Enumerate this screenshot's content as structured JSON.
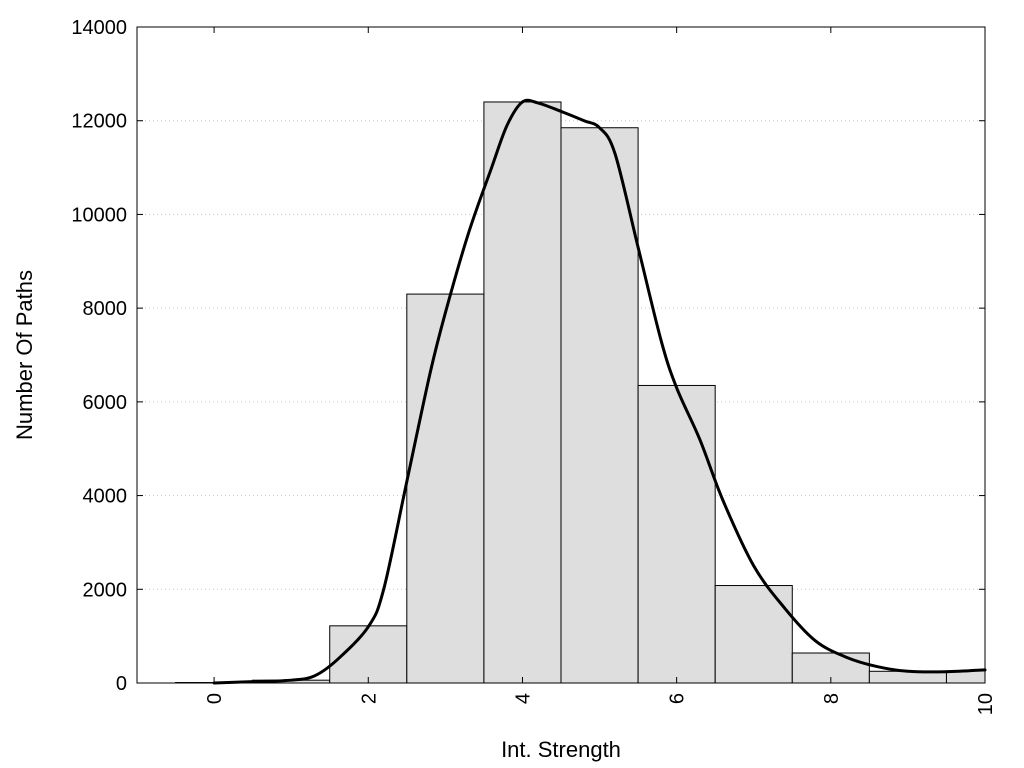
{
  "chart_data": {
    "type": "bar",
    "xlabel": "Int. Strength",
    "ylabel": "Number Of Paths",
    "xlim": [
      -1,
      10
    ],
    "ylim": [
      0,
      14000
    ],
    "grid": true,
    "x_ticks": [
      "0",
      "2",
      "4",
      "6",
      "8",
      "10"
    ],
    "y_ticks": [
      "0",
      "2000",
      "4000",
      "6000",
      "8000",
      "10000",
      "12000",
      "14000"
    ],
    "bars": {
      "centers": [
        0,
        1,
        2,
        3,
        4,
        5,
        6,
        7,
        8,
        9,
        10
      ],
      "width": 1,
      "values": [
        10,
        60,
        1220,
        8300,
        12400,
        11850,
        6350,
        2080,
        640,
        250,
        260
      ]
    },
    "curve": {
      "x": [
        0,
        0.5,
        1.0,
        1.3,
        1.6,
        2.0,
        2.2,
        2.5,
        2.8,
        3.0,
        3.3,
        3.6,
        3.8,
        4.0,
        4.2,
        4.5,
        4.8,
        5.0,
        5.2,
        5.5,
        5.8,
        6.0,
        6.3,
        6.6,
        7.0,
        7.4,
        7.8,
        8.2,
        8.6,
        9.0,
        9.5,
        10.0
      ],
      "y": [
        0,
        30,
        60,
        150,
        500,
        1200,
        2000,
        4300,
        6600,
        7900,
        9600,
        11000,
        11900,
        12400,
        12380,
        12200,
        12000,
        11850,
        11300,
        9300,
        7300,
        6300,
        5200,
        3900,
        2500,
        1600,
        900,
        550,
        350,
        250,
        240,
        280
      ]
    }
  }
}
